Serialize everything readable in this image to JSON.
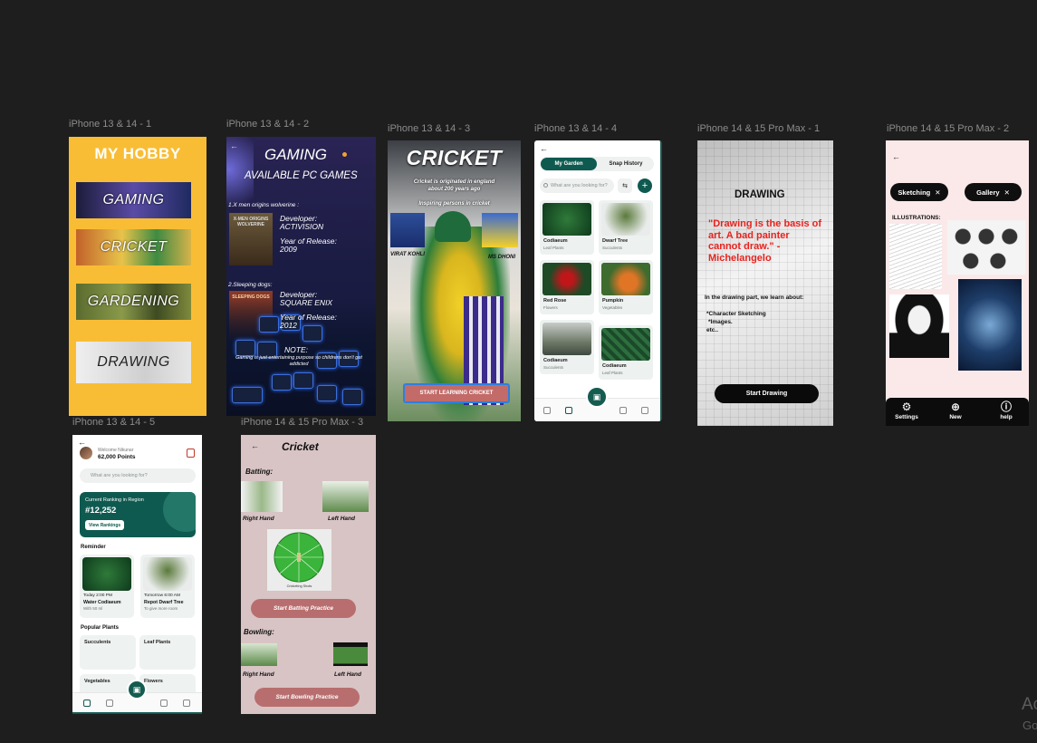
{
  "labels": {
    "f1": "iPhone 13 & 14 - 1",
    "f2": "iPhone 13 & 14 - 2",
    "f3": "iPhone 13 & 14 - 3",
    "f4": "iPhone 13 & 14 - 4",
    "f5": "iPhone 14 & 15 Pro Max - 1",
    "f6": "iPhone 14 & 15 Pro Max - 2",
    "f7": "iPhone 13 & 14 - 5",
    "f8": "iPhone 14 & 15 Pro Max - 3"
  },
  "hobby": {
    "title": "MY HOBBY",
    "items": [
      "GAMING",
      "CRICKET",
      "GARDENING",
      "DRAWING"
    ]
  },
  "gaming": {
    "title": "GAMING",
    "subtitle": "AVAILABLE PC GAMES",
    "game1_name": "1.X men origins wolverine :",
    "game1_thumb": "X-MEN ORIGINS WOLVERINE",
    "game1_dev": "Developer: ACTIVISION",
    "game1_year": "Year of Release: 2009",
    "game2_name": "2.Sleeping dogs:",
    "game2_thumb": "SLEEPING DOGS",
    "game2_dev": "Developer: SQUARE ENIX",
    "game2_year": "Year of Release: 2012",
    "note_title": "NOTE:",
    "note_text": "Gaming is just entertaining purpose so childrens don't get addicted"
  },
  "cricket": {
    "title": "CRICKET",
    "origin": "Cricket is originated in england about 200 years ago",
    "inspiring": "Inspiring persons in cricket",
    "person1": "VIRAT KOHLI",
    "person2": "MS DHONI",
    "button": "START LEARNING CRICKET"
  },
  "garden": {
    "tab1": "My Garden",
    "tab2": "Snap History",
    "search_placeholder": "What are you looking for?",
    "plants": [
      {
        "name": "Codiaeum",
        "category": "Leaf Plants"
      },
      {
        "name": "Dwarf Tree",
        "category": "Succulents"
      },
      {
        "name": "Red Rose",
        "category": "Flowers"
      },
      {
        "name": "Pumpkin",
        "category": "Vegetables"
      },
      {
        "name": "Codiaeum",
        "category": "Succulents"
      },
      {
        "name": "Codiaeum",
        "category": "Leaf Plants"
      }
    ]
  },
  "drawing": {
    "title": "DRAWING",
    "quote": "\"Drawing is the basis of art. A bad painter cannot draw.\" - Michelangelo",
    "intro": "In the drawing part, we learn about:",
    "item1": "*Character Sketching",
    "item2": "*Images.",
    "item3": "etc..",
    "button": "Start Drawing",
    "quote_color": "#e8231f"
  },
  "sketch": {
    "chip1": "Sketching",
    "chip2": "Gallery",
    "section": "ILLUSTRATIONS:",
    "nav": [
      "Settings",
      "New",
      "help"
    ]
  },
  "welcome": {
    "greeting": "Welcome Nikunar",
    "points": "62,000 Points",
    "search_placeholder": "What are you looking for?",
    "rank_label": "Current Ranking in Region",
    "rank_value": "#12,252",
    "rank_button": "View Rankings",
    "reminder": "Reminder",
    "rem1_time": "Today 2:00 PM",
    "rem1_name": "Water Codiaeum",
    "rem1_sub": "With 50 ml",
    "rem2_time": "Tomorrow 6:00 AM",
    "rem2_name": "Repot Dwarf Tree",
    "rem2_sub": "To give more room",
    "popular": "Popular Plants",
    "pop": [
      "Succulents",
      "Leaf Plants",
      "Vegetables",
      "Flowers"
    ]
  },
  "practice": {
    "title": "Cricket",
    "batting": "Batting:",
    "right1": "Right Hand",
    "left1": "Left Hand",
    "chart_caption": "Cricketing Shots",
    "bat_button": "Start Batting Practice",
    "bowling": "Bowling:",
    "right2": "Right Hand",
    "left2": "Left Hand",
    "bowl_button": "Start Bowling Practice"
  },
  "watermark": {
    "line1": "Ac",
    "line2": "Go"
  }
}
